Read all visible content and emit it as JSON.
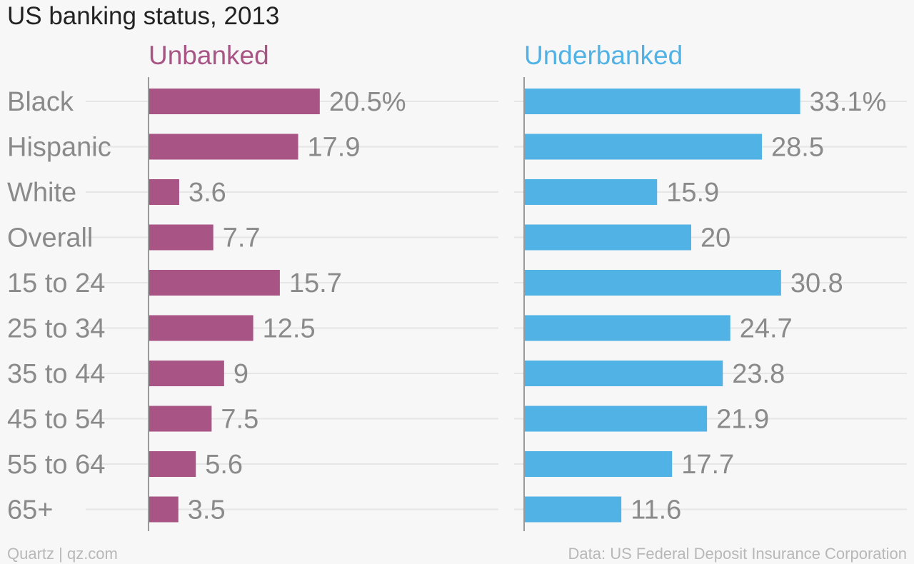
{
  "chart_data": {
    "type": "bar",
    "orientation": "horizontal",
    "title": "US banking status, 2013",
    "categories": [
      "Black",
      "Hispanic",
      "White",
      "Overall",
      "15 to 24",
      "25 to 34",
      "35 to 44",
      "45 to 54",
      "55 to 64",
      "65+"
    ],
    "series": [
      {
        "name": "Unbanked",
        "color": "#a85586",
        "values": [
          20.5,
          17.9,
          3.6,
          7.7,
          15.7,
          12.5,
          9,
          7.5,
          5.6,
          3.5
        ],
        "value_labels": [
          "20.5%",
          "17.9",
          "3.6",
          "7.7",
          "15.7",
          "12.5",
          "9",
          "7.5",
          "5.6",
          "3.5"
        ]
      },
      {
        "name": "Underbanked",
        "color": "#51b2e5",
        "values": [
          33.1,
          28.5,
          15.9,
          20,
          30.8,
          24.7,
          23.8,
          21.9,
          17.7,
          11.6
        ],
        "value_labels": [
          "33.1%",
          "28.5",
          "15.9",
          "20",
          "30.8",
          "24.7",
          "23.8",
          "21.9",
          "17.7",
          "11.6"
        ]
      }
    ],
    "grid": true,
    "layout": "small-multiples"
  },
  "footer": {
    "source_left": "Quartz | qz.com",
    "source_right": "Data: US Federal Deposit Insurance Corporation"
  }
}
